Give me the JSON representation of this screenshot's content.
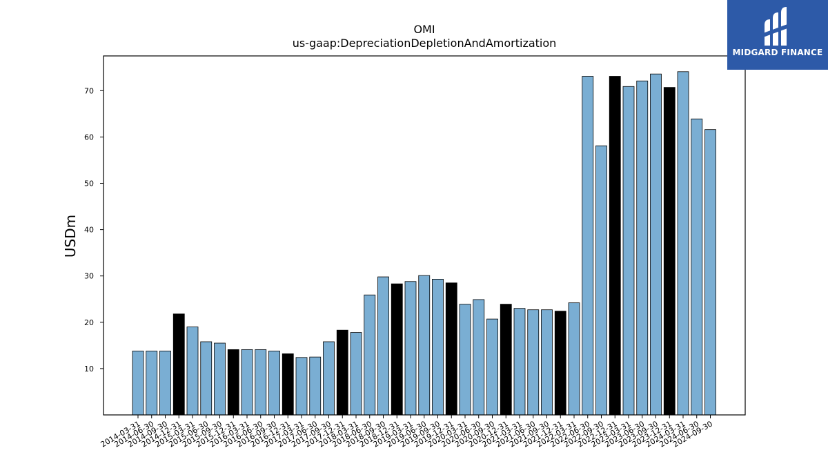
{
  "brand": {
    "name": "MIDGARD FINANCE",
    "bg_color": "#2d5aa8",
    "text_color": "#ffffff",
    "icon": "midgard-logo-mark"
  },
  "chart_data": {
    "type": "bar",
    "title": "OMI",
    "subtitle": "us-gaap:DepreciationDepletionAndAmortization",
    "xlabel": "",
    "ylabel": "USDm",
    "ylim": [
      0,
      77.5
    ],
    "yticks": [
      10,
      20,
      30,
      40,
      50,
      60,
      70
    ],
    "grid": false,
    "colors": {
      "quarter": "#7aaed3",
      "year_end": "#000000",
      "edge": "#000000"
    },
    "categories": [
      "2014-03-31",
      "2014-06-30",
      "2014-09-30",
      "2014-12-31",
      "2015-03-31",
      "2015-06-30",
      "2015-09-30",
      "2015-12-31",
      "2016-03-31",
      "2016-06-30",
      "2016-09-30",
      "2016-12-31",
      "2017-03-31",
      "2017-06-30",
      "2017-09-30",
      "2017-12-31",
      "2018-03-31",
      "2018-06-30",
      "2018-09-30",
      "2018-12-31",
      "2019-03-31",
      "2019-06-30",
      "2019-09-30",
      "2019-12-31",
      "2020-03-31",
      "2020-06-30",
      "2020-09-30",
      "2020-12-31",
      "2021-03-31",
      "2021-06-30",
      "2021-09-30",
      "2021-12-31",
      "2022-03-31",
      "2022-06-30",
      "2022-09-30",
      "2022-12-31",
      "2023-03-31",
      "2023-06-30",
      "2023-09-30",
      "2023-12-31",
      "2024-03-31",
      "2024-06-30",
      "2024-09-30"
    ],
    "values": [
      13.8,
      13.8,
      13.8,
      21.8,
      19.0,
      15.8,
      15.5,
      14.1,
      14.1,
      14.1,
      13.8,
      13.2,
      12.4,
      12.5,
      15.8,
      18.3,
      17.8,
      25.9,
      29.8,
      28.3,
      28.8,
      30.1,
      29.3,
      28.5,
      23.9,
      24.9,
      20.7,
      23.9,
      23.0,
      22.7,
      22.7,
      22.4,
      24.2,
      73.1,
      58.1,
      73.1,
      70.9,
      72.1,
      73.6,
      70.7,
      74.1,
      63.9,
      61.6
    ],
    "year_end": [
      false,
      false,
      false,
      true,
      false,
      false,
      false,
      true,
      false,
      false,
      false,
      true,
      false,
      false,
      false,
      true,
      false,
      false,
      false,
      true,
      false,
      false,
      false,
      true,
      false,
      false,
      false,
      true,
      false,
      false,
      false,
      true,
      false,
      false,
      false,
      true,
      false,
      false,
      false,
      true,
      false,
      false,
      false
    ]
  }
}
